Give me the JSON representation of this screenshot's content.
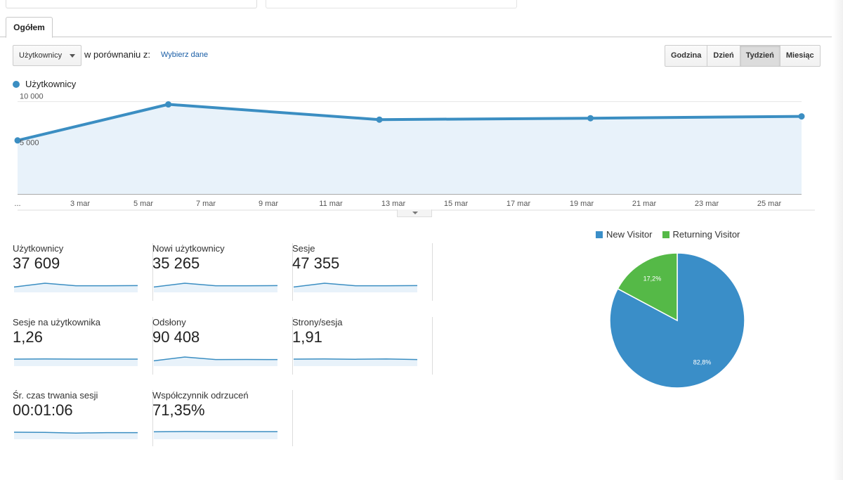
{
  "tabs": [
    {
      "label": "Ogółem"
    }
  ],
  "controls": {
    "metric_select": "Użytkownicy",
    "compare_label": "w porównaniu z:",
    "compare_link": "Wybierz dane",
    "periods": [
      "Godzina",
      "Dzień",
      "Tydzień",
      "Miesiąc"
    ],
    "active_period": "Tydzień"
  },
  "chart_data": [
    {
      "type": "area",
      "series": [
        {
          "name": "Użytkownicy",
          "points": [
            {
              "x": "2018-02-29",
              "y": 5800
            },
            {
              "x": "2018-03-05",
              "y": 9700
            },
            {
              "x": "2018-03-12",
              "y": 8050
            },
            {
              "x": "2018-03-19",
              "y": 8200
            },
            {
              "x": "2018-03-26",
              "y": 8400
            }
          ]
        }
      ],
      "x_ticks": [
        "...",
        "3 mar",
        "5 mar",
        "7 mar",
        "9 mar",
        "11 mar",
        "13 mar",
        "15 mar",
        "17 mar",
        "19 mar",
        "21 mar",
        "23 mar",
        "25 mar"
      ],
      "y_ticks": [
        "10 000",
        "5 000"
      ],
      "ylim": [
        0,
        10500
      ],
      "color": "#3b8ec2",
      "fill": "#e8f2fa",
      "grid": true,
      "legend": "top-left"
    },
    {
      "type": "pie",
      "slices": [
        {
          "name": "New Visitor",
          "value": 82.8,
          "label": "82,8%",
          "color": "#3a8ec8"
        },
        {
          "name": "Returning Visitor",
          "value": 17.2,
          "label": "17,2%",
          "color": "#55b947"
        }
      ],
      "legend": "top"
    }
  ],
  "metrics": [
    {
      "label": "Użytkownicy",
      "value": "37 609",
      "spark": [
        0.3,
        0.75,
        0.45,
        0.45,
        0.47
      ]
    },
    {
      "label": "Nowi użytkownicy",
      "value": "35 265",
      "spark": [
        0.3,
        0.75,
        0.45,
        0.45,
        0.47
      ]
    },
    {
      "label": "Sesje",
      "value": "47 355",
      "spark": [
        0.3,
        0.75,
        0.45,
        0.45,
        0.47
      ]
    },
    {
      "label": "Sesje na użytkownika",
      "value": "1,26",
      "spark": [
        0.5,
        0.52,
        0.5,
        0.5,
        0.5
      ]
    },
    {
      "label": "Odsłony",
      "value": "90 408",
      "spark": [
        0.3,
        0.75,
        0.45,
        0.46,
        0.45
      ]
    },
    {
      "label": "Strony/sesja",
      "value": "1,91",
      "spark": [
        0.5,
        0.52,
        0.48,
        0.52,
        0.45
      ]
    },
    {
      "label": "Śr. czas trwania sesji",
      "value": "00:01:06",
      "spark": [
        0.5,
        0.48,
        0.4,
        0.45,
        0.45
      ]
    },
    {
      "label": "Współczynnik odrzuceń",
      "value": "71,35%",
      "spark": [
        0.55,
        0.58,
        0.57,
        0.56,
        0.57
      ]
    }
  ]
}
